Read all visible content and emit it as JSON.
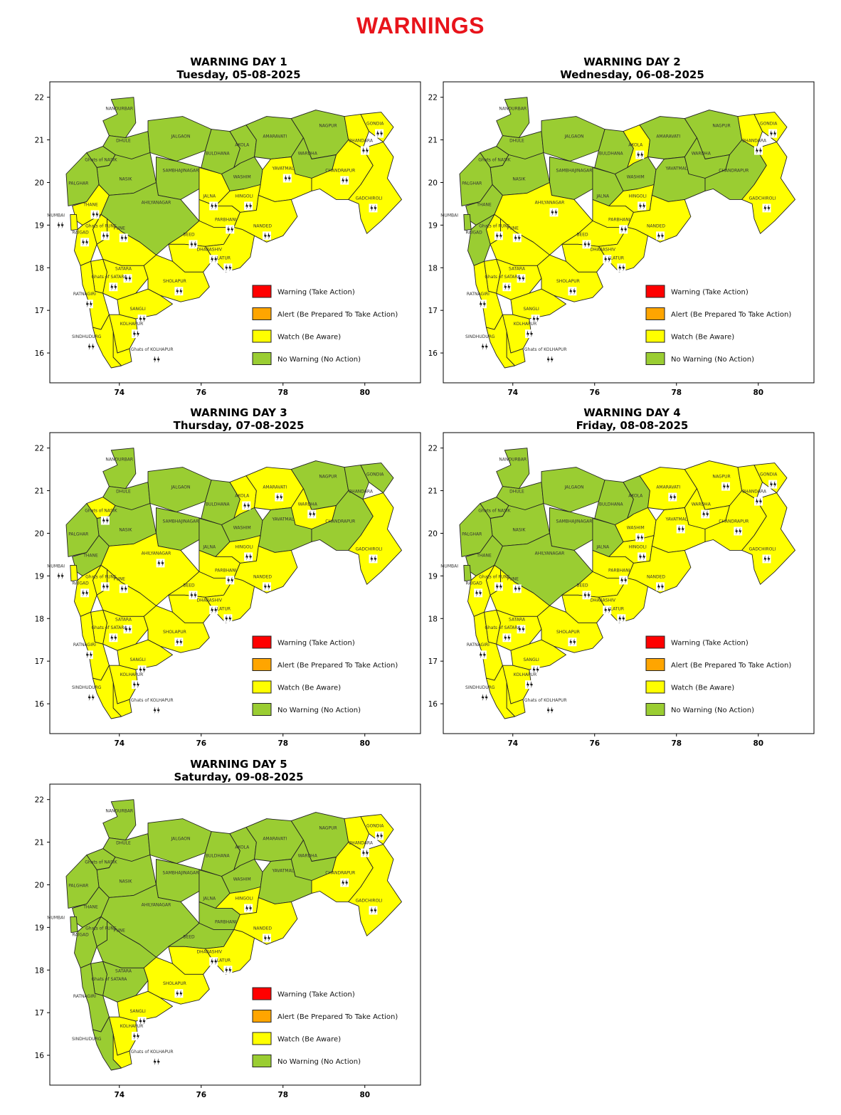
{
  "title": "WARNINGS",
  "colors": {
    "warning": "#ff0000",
    "alert": "#ffa500",
    "watch": "#ffff00",
    "none": "#9acd32",
    "title_red": "#e8141b"
  },
  "legend": [
    {
      "label": "Warning (Take Action)",
      "color_key": "warning"
    },
    {
      "label": "Alert (Be Prepared To Take Action)",
      "color_key": "alert"
    },
    {
      "label": "Watch (Be Aware)",
      "color_key": "watch"
    },
    {
      "label": "No Warning (No Action)",
      "color_key": "none"
    }
  ],
  "axes": {
    "x_ticks": [
      "74",
      "76",
      "78",
      "80"
    ],
    "y_ticks": [
      "22",
      "21",
      "20",
      "19",
      "18",
      "17",
      "16"
    ]
  },
  "region_labels": [
    "NANDURBAR",
    "DHULE",
    "JALGAON",
    "BULDHANA",
    "AKOLA",
    "AMARAVATI",
    "NAGPUR",
    "GONDIA",
    "BHANDARA",
    "WARDHA",
    "YAVATMAL",
    "WASHIM",
    "CHANDRAPUR",
    "GADCHIROLI",
    "Ghats of NASIK",
    "NASIK",
    "PALGHAR",
    "THANE",
    "MUMBAI",
    "SAMBHAJINAGAR",
    "JALNA",
    "HINGOLI",
    "PARBHANI",
    "NANDED",
    "AHILYANAGAR",
    "BEED",
    "Ghats of PUNE",
    "PUNE",
    "RAIGAD",
    "DHARASHIV",
    "LATUR",
    "SATARA",
    "Ghats of SATARA",
    "SHOLAPUR",
    "RATNAGIRI",
    "SANGLI",
    "KOLHAPUR",
    "SINDHUDURG",
    "Ghats of KOLHAPUR"
  ],
  "days": [
    {
      "heading": "WARNING DAY 1",
      "date": "Tuesday, 05-08-2025",
      "watch_districts": [
        "GONDIA",
        "BHANDARA",
        "CHANDRAPUR",
        "GADCHIROLI",
        "YAVATMAL",
        "JALNA",
        "HINGOLI",
        "PARBHANI",
        "NANDED",
        "BEED",
        "DHARASHIV",
        "LATUR",
        "SHOLAPUR",
        "PUNE",
        "Ghats of PUNE",
        "RAIGAD",
        "MUMBAI",
        "THANE",
        "SATARA",
        "Ghats of SATARA",
        "RATNAGIRI",
        "SANGLI",
        "KOLHAPUR",
        "SINDHUDURG",
        "Ghats of KOLHAPUR"
      ]
    },
    {
      "heading": "WARNING DAY 2",
      "date": "Wednesday, 06-08-2025",
      "watch_districts": [
        "GONDIA",
        "BHANDARA",
        "GADCHIROLI",
        "AKOLA",
        "HINGOLI",
        "PARBHANI",
        "NANDED",
        "BEED",
        "DHARASHIV",
        "LATUR",
        "SHOLAPUR",
        "AHILYANAGAR",
        "PUNE",
        "Ghats of PUNE",
        "SATARA",
        "Ghats of SATARA",
        "SANGLI",
        "KOLHAPUR",
        "RATNAGIRI",
        "SINDHUDURG",
        "Ghats of KOLHAPUR"
      ]
    },
    {
      "heading": "WARNING DAY 3",
      "date": "Thursday, 07-08-2025",
      "watch_districts": [
        "AMARAVATI",
        "WARDHA",
        "AKOLA",
        "GADCHIROLI",
        "AHILYANAGAR",
        "BEED",
        "HINGOLI",
        "PARBHANI",
        "NANDED",
        "DHARASHIV",
        "LATUR",
        "SHOLAPUR",
        "PUNE",
        "Ghats of PUNE",
        "Ghats of NASIK",
        "RAIGAD",
        "MUMBAI",
        "SATARA",
        "Ghats of SATARA",
        "RATNAGIRI",
        "SANGLI",
        "KOLHAPUR",
        "SINDHUDURG",
        "Ghats of KOLHAPUR"
      ]
    },
    {
      "heading": "WARNING DAY 4",
      "date": "Friday, 08-08-2025",
      "watch_districts": [
        "AMARAVATI",
        "NAGPUR",
        "GONDIA",
        "BHANDARA",
        "WARDHA",
        "YAVATMAL",
        "CHANDRAPUR",
        "GADCHIROLI",
        "WASHIM",
        "HINGOLI",
        "PARBHANI",
        "NANDED",
        "BEED",
        "DHARASHIV",
        "LATUR",
        "SHOLAPUR",
        "PUNE",
        "Ghats of PUNE",
        "RAIGAD",
        "SATARA",
        "Ghats of SATARA",
        "RATNAGIRI",
        "SANGLI",
        "KOLHAPUR",
        "SINDHUDURG",
        "Ghats of KOLHAPUR"
      ]
    },
    {
      "heading": "WARNING DAY 5",
      "date": "Saturday, 09-08-2025",
      "watch_districts": [
        "GONDIA",
        "BHANDARA",
        "CHANDRAPUR",
        "GADCHIROLI",
        "HINGOLI",
        "NANDED",
        "DHARASHIV",
        "LATUR",
        "SHOLAPUR",
        "SANGLI",
        "KOLHAPUR",
        "Ghats of KOLHAPUR"
      ]
    }
  ]
}
